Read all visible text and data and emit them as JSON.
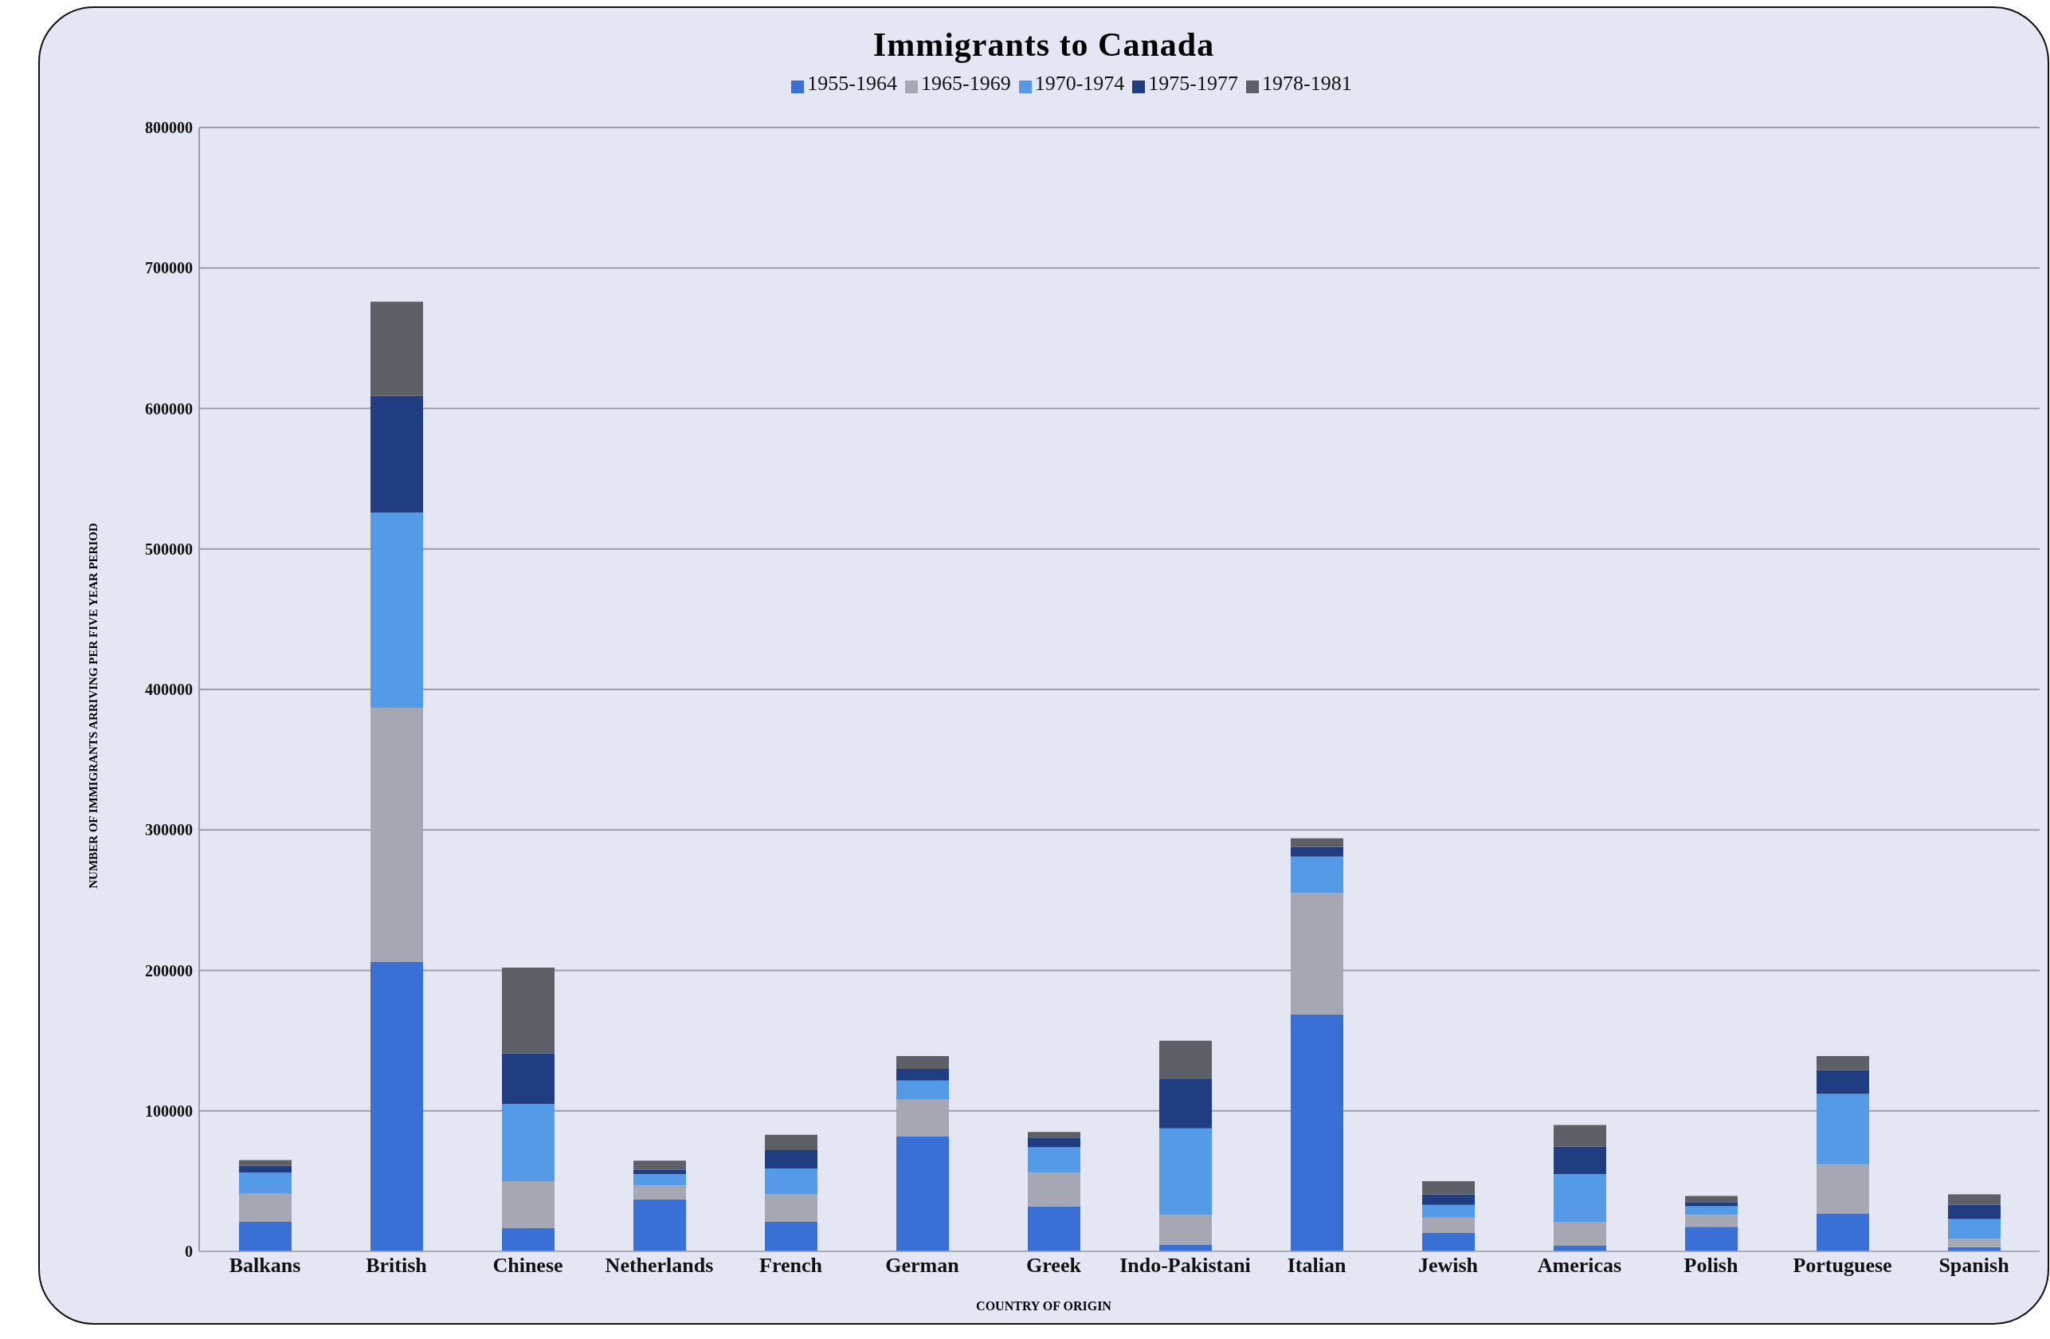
{
  "chart_data": {
    "type": "bar",
    "title": "Immigrants to Canada",
    "xlabel": "COUNTRY OF ORIGIN",
    "ylabel": "NUMBER OF IMMIGRANTS ARRIVING PER FIVE YEAR PERIOD",
    "categories": [
      "Balkans",
      "British",
      "Chinese",
      "Netherlands",
      "French",
      "German",
      "Greek",
      "Indo-Pakistani",
      "Italian",
      "Jewish",
      "Americas",
      "Polish",
      "Portuguese",
      "Spanish"
    ],
    "series": [
      {
        "name": "1955-1964",
        "color": "#3a6fd6",
        "values": [
          21000,
          206000,
          16500,
          37000,
          21000,
          82000,
          32000,
          4500,
          168500,
          13000,
          4000,
          17500,
          27000,
          3000
        ]
      },
      {
        "name": "1965-1969",
        "color": "#a5a8b3",
        "values": [
          20000,
          181000,
          33500,
          10000,
          19500,
          26000,
          24000,
          21500,
          86500,
          11000,
          17000,
          8500,
          35000,
          6000
        ]
      },
      {
        "name": "1970-1974",
        "color": "#559ae6",
        "values": [
          15000,
          139000,
          55000,
          8000,
          18500,
          13500,
          18000,
          61500,
          26000,
          9000,
          34000,
          6000,
          50000,
          14000
        ]
      },
      {
        "name": "1975-1977",
        "color": "#1f3d80",
        "values": [
          5000,
          83000,
          36000,
          3000,
          13000,
          8500,
          7000,
          35000,
          7000,
          7500,
          19500,
          3000,
          17000,
          10000
        ]
      },
      {
        "name": "1978-1981",
        "color": "#5d5f66",
        "values": [
          4000,
          67000,
          61000,
          6500,
          11000,
          9000,
          4000,
          27500,
          6000,
          9500,
          15500,
          4500,
          10000,
          7500
        ]
      }
    ],
    "stacked": true,
    "ylim": [
      0,
      800000
    ],
    "yticks": [
      0,
      100000,
      200000,
      300000,
      400000,
      500000,
      600000,
      700000,
      800000
    ],
    "grid": "y",
    "legend": "top"
  }
}
